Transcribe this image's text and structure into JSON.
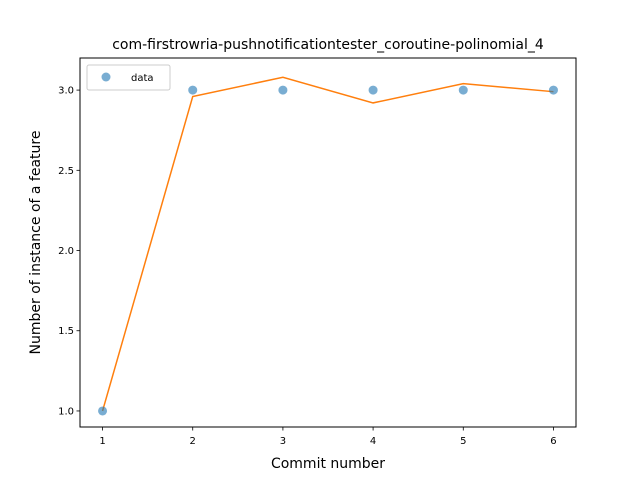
{
  "chart_data": {
    "type": "scatter",
    "title": "com-firstrowria-pushnotificationtester_coroutine-polinomial_4",
    "xlabel": "Commit number",
    "ylabel": "Number of instance of a feature",
    "xlim": [
      0.75,
      6.25
    ],
    "ylim": [
      0.9,
      3.2
    ],
    "xticks": [
      1,
      2,
      3,
      4,
      5,
      6
    ],
    "yticks": [
      1.0,
      1.5,
      2.0,
      2.5,
      3.0
    ],
    "xtick_labels": [
      "1",
      "2",
      "3",
      "4",
      "5",
      "6"
    ],
    "ytick_labels": [
      "1.0",
      "1.5",
      "2.0",
      "2.5",
      "3.0"
    ],
    "grid": false,
    "legend": {
      "placement": "top-left",
      "entries": [
        "data"
      ]
    },
    "series": [
      {
        "name": "data",
        "kind": "scatter",
        "color": "#1f77b4",
        "x": [
          1,
          2,
          3,
          4,
          5,
          6
        ],
        "y": [
          1.0,
          3.0,
          3.0,
          3.0,
          3.0,
          3.0
        ]
      },
      {
        "kind": "line",
        "color": "#ff7f0e",
        "x": [
          1,
          2,
          3,
          4,
          5,
          6
        ],
        "y": [
          1.0,
          2.96,
          3.08,
          2.92,
          3.04,
          2.99
        ]
      }
    ]
  }
}
